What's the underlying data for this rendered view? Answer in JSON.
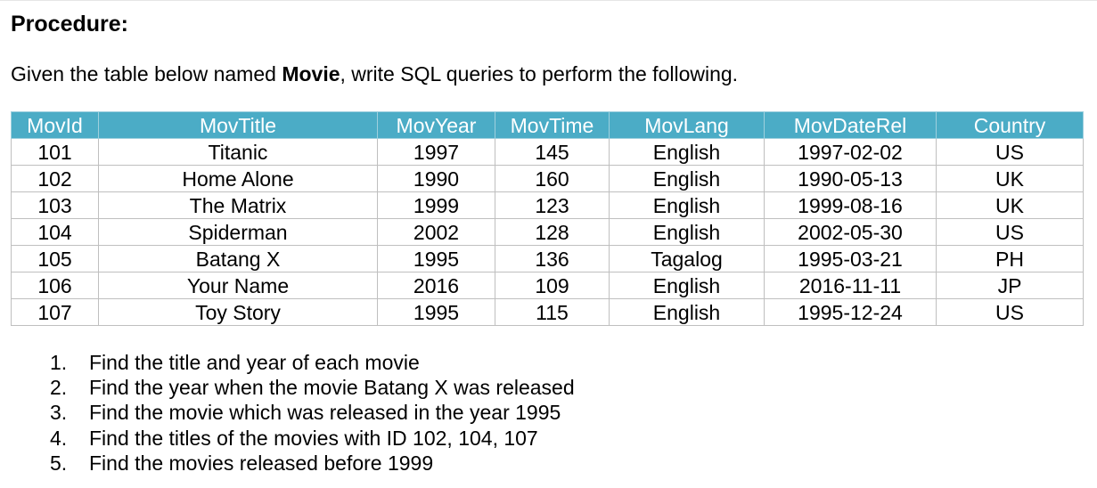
{
  "heading": "Procedure:",
  "intro": {
    "before": "Given the table below named ",
    "name": "Movie",
    "after": ", write SQL queries to perform the following."
  },
  "table": {
    "headers": [
      "MovId",
      "MovTitle",
      "MovYear",
      "MovTime",
      "MovLang",
      "MovDateRel",
      "Country"
    ],
    "rows": [
      [
        "101",
        "Titanic",
        "1997",
        "145",
        "English",
        "1997-02-02",
        "US"
      ],
      [
        "102",
        "Home Alone",
        "1990",
        "160",
        "English",
        "1990-05-13",
        "UK"
      ],
      [
        "103",
        "The Matrix",
        "1999",
        "123",
        "English",
        "1999-08-16",
        "UK"
      ],
      [
        "104",
        "Spiderman",
        "2002",
        "128",
        "English",
        "2002-05-30",
        "US"
      ],
      [
        "105",
        "Batang X",
        "1995",
        "136",
        "Tagalog",
        "1995-03-21",
        "PH"
      ],
      [
        "106",
        "Your Name",
        "2016",
        "109",
        "English",
        "2016-11-11",
        "JP"
      ],
      [
        "107",
        "Toy Story",
        "1995",
        "115",
        "English",
        "1995-12-24",
        "US"
      ]
    ],
    "header_color": "#4bacc6"
  },
  "tasks": [
    {
      "num": "1.",
      "text": "Find the title and year of each movie"
    },
    {
      "num": "2.",
      "text": "Find the year when the movie Batang X was released"
    },
    {
      "num": "3.",
      "text": "Find the movie which was released in the year 1995"
    },
    {
      "num": "4.",
      "text": "Find the titles of the movies with ID 102, 104, 107"
    },
    {
      "num": "5.",
      "text": "Find the movies released before 1999"
    }
  ]
}
